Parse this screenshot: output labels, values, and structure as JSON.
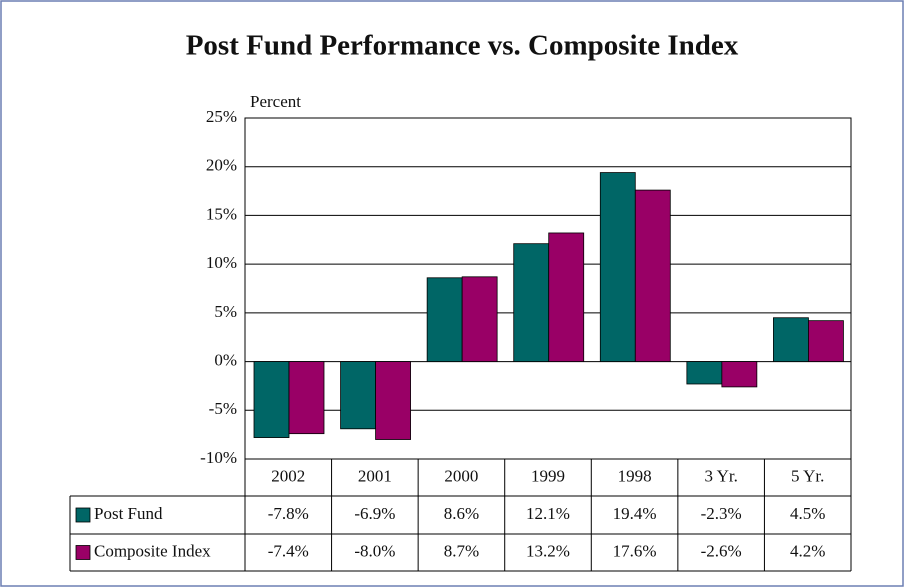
{
  "chart_data": {
    "type": "bar",
    "title": "Post Fund Performance vs. Composite Index",
    "y_label": "Percent",
    "categories": [
      "2002",
      "2001",
      "2000",
      "1999",
      "1998",
      "3 Yr.",
      "5 Yr."
    ],
    "series": [
      {
        "name": "Post Fund",
        "color": "#006666",
        "values": [
          -7.8,
          -6.9,
          8.6,
          12.1,
          19.4,
          -2.3,
          4.5
        ],
        "value_labels": [
          "-7.8%",
          "-6.9%",
          "8.6%",
          "12.1%",
          "19.4%",
          "-2.3%",
          "4.5%"
        ]
      },
      {
        "name": "Composite Index",
        "color": "#990066",
        "values": [
          -7.4,
          -8.0,
          8.7,
          13.2,
          17.6,
          -2.6,
          4.2
        ],
        "value_labels": [
          "-7.4%",
          "-8.0%",
          "8.7%",
          "13.2%",
          "17.6%",
          "-2.6%",
          "4.2%"
        ]
      }
    ],
    "ylim": [
      -10,
      25
    ],
    "yticks": [
      {
        "value": -10,
        "label": "-10%"
      },
      {
        "value": -5,
        "label": "-5%"
      },
      {
        "value": 0,
        "label": "0%"
      },
      {
        "value": 5,
        "label": "5%"
      },
      {
        "value": 10,
        "label": "10%"
      },
      {
        "value": 15,
        "label": "15%"
      },
      {
        "value": 20,
        "label": "20%"
      },
      {
        "value": 25,
        "label": "25%"
      }
    ],
    "grid": true
  }
}
